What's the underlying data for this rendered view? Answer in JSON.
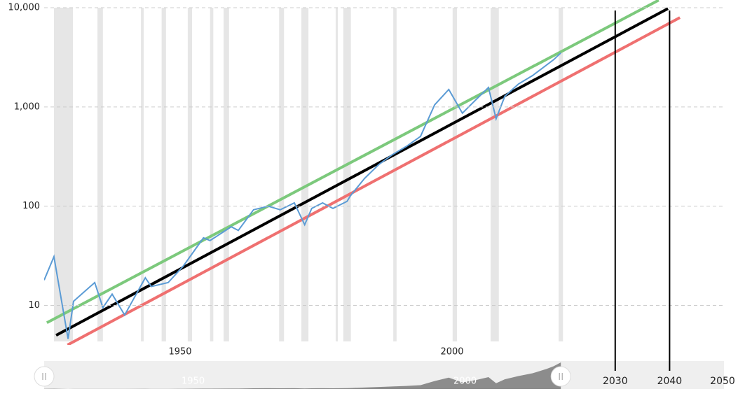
{
  "chart_data": {
    "type": "line",
    "log_y": true,
    "grid": true,
    "xlim": [
      1925,
      2050
    ],
    "ylim": [
      4,
      10000
    ],
    "xticks": [
      1950,
      2000
    ],
    "yticks": [
      10,
      100,
      {
        "value": 1000,
        "label": "1,000"
      },
      {
        "value": 10000,
        "label": "10,000"
      }
    ],
    "recession_color": "#e6e6e6",
    "recessions": [
      [
        1926.8,
        1930.3
      ],
      [
        1934.8,
        1935.8
      ],
      [
        1942.8,
        1943.3
      ],
      [
        1946.6,
        1947.4
      ],
      [
        1951.4,
        1952.2
      ],
      [
        1955.5,
        1956.1
      ],
      [
        1958.0,
        1959.0
      ],
      [
        1968.2,
        1969.1
      ],
      [
        1972.3,
        1973.6
      ],
      [
        1978.6,
        1979.0
      ],
      [
        1980.0,
        1981.4
      ],
      [
        1989.2,
        1989.8
      ],
      [
        2000.1,
        2000.9
      ],
      [
        2007.1,
        2008.6
      ],
      [
        2019.6,
        2020.4
      ]
    ],
    "series": [
      {
        "color": "#5b9bd5",
        "x": [
          1925.0,
          1926.8,
          1929.4,
          1930.4,
          1934.3,
          1935.8,
          1937.5,
          1939.8,
          1943.6,
          1944.7,
          1947.8,
          1950.6,
          1954.3,
          1955.5,
          1959.4,
          1960.7,
          1963.5,
          1966.2,
          1968.4,
          1971.0,
          1972.9,
          1974.2,
          1976.2,
          1978.1,
          1980.7,
          1981.3,
          1983.9,
          1986.5,
          1989.0,
          1991.6,
          1994.2,
          1996.8,
          1999.4,
          2001.9,
          2004.5,
          2006.7,
          2008.1,
          2009.7,
          2012.2,
          2014.8,
          2017.4,
          2018.7,
          2020.0
        ],
        "values": [
          18,
          31,
          4.6,
          11,
          17,
          9.5,
          13,
          8,
          19,
          15.5,
          17,
          25,
          48,
          45,
          62,
          57,
          92,
          100,
          92,
          108,
          65,
          95,
          108,
          95,
          112,
          127,
          190,
          262,
          330,
          400,
          505,
          1050,
          1500,
          865,
          1200,
          1570,
          760,
          1280,
          1700,
          2070,
          2650,
          3000,
          3500
        ]
      }
    ],
    "trend_lines": [
      {
        "color": "#7cc97c",
        "x": [
          1925.5,
          2038.0
        ],
        "values": [
          6.7,
          11900
        ]
      },
      {
        "color": "#000000",
        "x": [
          1927.2,
          2039.7
        ],
        "values": [
          5,
          9800
        ]
      },
      {
        "color": "#ef7070",
        "x": [
          1929.3,
          2041.9
        ],
        "values": [
          4,
          7950
        ]
      }
    ],
    "navigator_ticks": [
      1950,
      2000
    ],
    "marker_years": [
      2030,
      2040
    ],
    "bottom_ticks": [
      2030,
      2040,
      2050
    ]
  }
}
